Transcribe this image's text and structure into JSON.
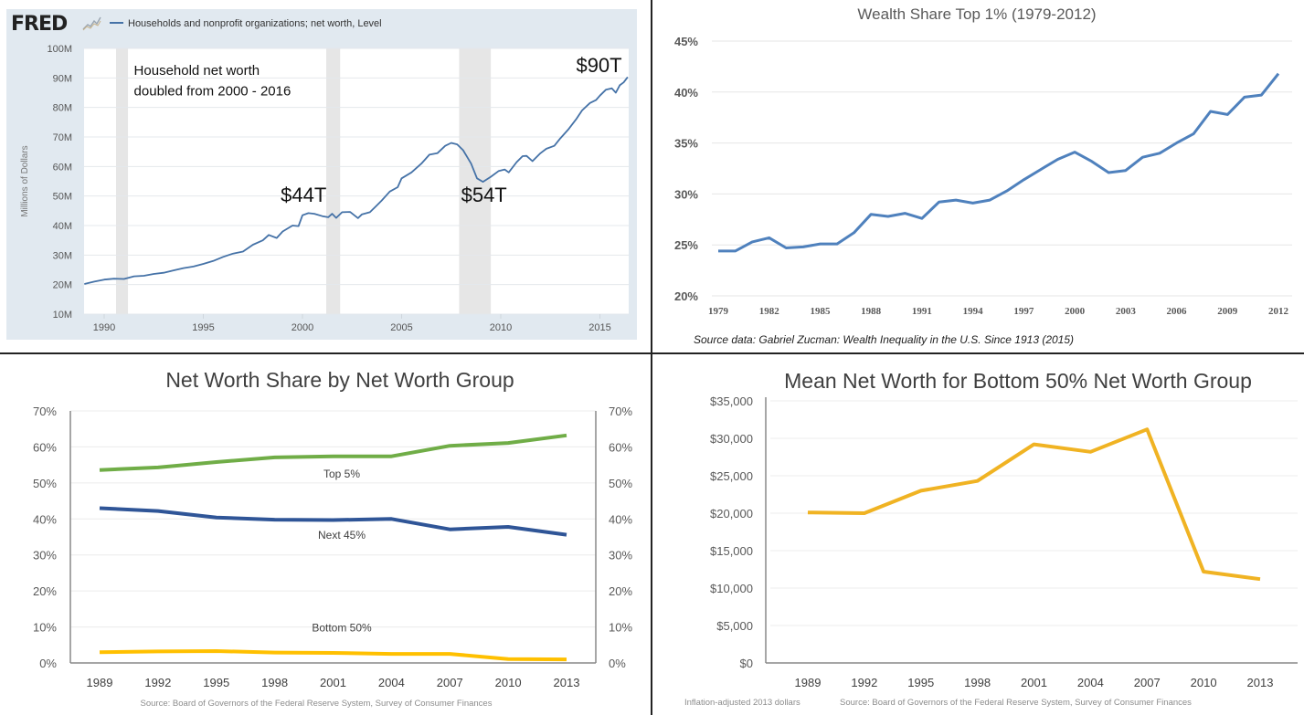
{
  "colors": {
    "fred_line": "#4572a7",
    "fred_panel_bg": "#e1e9f0",
    "recession_band": "#e6e6e6",
    "top1_line": "#4f81bd",
    "top5_line": "#70ad47",
    "next45_line": "#2f5597",
    "bottom50_line": "#ffc000",
    "mean_line": "#f0b323"
  },
  "chart_data": [
    {
      "id": "fred",
      "type": "line",
      "logo_text": "FRED",
      "logo_icon": "chart-line-icon",
      "legend": "Households and nonprofit organizations; net worth, Level",
      "ylabel": "Millions of Dollars",
      "ylim": [
        10,
        100
      ],
      "xlim": [
        1989.0,
        2016.4
      ],
      "y_ticks": [
        "10M",
        "20M",
        "30M",
        "40M",
        "50M",
        "60M",
        "70M",
        "80M",
        "90M",
        "100M"
      ],
      "y_tick_values": [
        10,
        20,
        30,
        40,
        50,
        60,
        70,
        80,
        90,
        100
      ],
      "x_ticks": [
        "1990",
        "1995",
        "2000",
        "2005",
        "2010",
        "2015"
      ],
      "x_tick_values": [
        1990,
        1995,
        2000,
        2005,
        2010,
        2015
      ],
      "recessions": [
        [
          1990.6,
          1991.2
        ],
        [
          2001.2,
          2001.9
        ],
        [
          2007.9,
          2009.5
        ]
      ],
      "annotations": [
        {
          "text": "Household net worth",
          "x": 1991.5,
          "y": 91
        },
        {
          "text": "doubled from 2000 - 2016",
          "x": 1991.5,
          "y": 84
        },
        {
          "text": "$44T",
          "x": 1998.9,
          "y": 48
        },
        {
          "text": "$54T",
          "x": 2008.0,
          "y": 48
        },
        {
          "text": "$90T",
          "x": 2013.8,
          "y": 92
        }
      ],
      "series": [
        {
          "name": "Households and nonprofit organizations; net worth, Level",
          "x": [
            1989.0,
            1989.5,
            1990.0,
            1990.5,
            1991.0,
            1991.5,
            1992.0,
            1992.5,
            1993.0,
            1993.5,
            1994.0,
            1994.5,
            1995.0,
            1995.5,
            1996.0,
            1996.5,
            1997.0,
            1997.5,
            1998.0,
            1998.3,
            1998.7,
            1999.0,
            1999.5,
            1999.8,
            2000.0,
            2000.3,
            2000.6,
            2001.0,
            2001.3,
            2001.5,
            2001.7,
            2002.0,
            2002.4,
            2002.8,
            2003.0,
            2003.4,
            2003.7,
            2004.0,
            2004.4,
            2004.8,
            2005.0,
            2005.5,
            2006.0,
            2006.4,
            2006.8,
            2007.2,
            2007.5,
            2007.8,
            2008.1,
            2008.5,
            2008.8,
            2009.1,
            2009.5,
            2009.9,
            2010.2,
            2010.4,
            2010.8,
            2011.1,
            2011.3,
            2011.6,
            2012.0,
            2012.3,
            2012.7,
            2013.0,
            2013.4,
            2013.8,
            2014.1,
            2014.5,
            2014.8,
            2015.0,
            2015.3,
            2015.6,
            2015.8,
            2016.0,
            2016.2,
            2016.4
          ],
          "values": [
            20.2,
            21.0,
            21.7,
            22.0,
            21.9,
            22.8,
            23.0,
            23.6,
            24.0,
            24.8,
            25.6,
            26.1,
            27.0,
            28.0,
            29.4,
            30.5,
            31.2,
            33.5,
            35.0,
            36.8,
            35.8,
            38.0,
            40.0,
            39.8,
            43.5,
            44.2,
            44.0,
            43.2,
            42.8,
            44.0,
            42.6,
            44.5,
            44.6,
            42.5,
            43.8,
            44.5,
            46.5,
            48.5,
            51.5,
            53.0,
            56.0,
            58.0,
            61.0,
            64.0,
            64.5,
            67.0,
            68.0,
            67.5,
            65.5,
            61.0,
            56.0,
            54.8,
            56.5,
            58.5,
            59.0,
            58.0,
            61.5,
            63.5,
            63.6,
            61.8,
            64.5,
            66.0,
            67.0,
            69.5,
            72.5,
            76.0,
            79.0,
            81.5,
            82.5,
            84.0,
            86.0,
            86.5,
            85.0,
            87.5,
            88.5,
            90.3
          ]
        }
      ]
    },
    {
      "id": "top1",
      "type": "line",
      "title": "Wealth Share Top 1% (1979-2012)",
      "ylim": [
        20,
        45
      ],
      "y_ticks": [
        "20%",
        "25%",
        "30%",
        "35%",
        "40%",
        "45%"
      ],
      "y_tick_values": [
        20,
        25,
        30,
        35,
        40,
        45
      ],
      "x_ticks": [
        "1979",
        "1982",
        "1985",
        "1988",
        "1991",
        "1994",
        "1997",
        "2000",
        "2003",
        "2006",
        "2009",
        "2012"
      ],
      "x_tick_values": [
        1979,
        1982,
        1985,
        1988,
        1991,
        1994,
        1997,
        2000,
        2003,
        2006,
        2009,
        2012
      ],
      "source": "Source data:  Gabriel Zucman:  Wealth Inequality in the U.S. Since 1913 (2015)",
      "series": [
        {
          "name": "Top 1% wealth share",
          "x": [
            1979,
            1980,
            1981,
            1982,
            1983,
            1984,
            1985,
            1986,
            1987,
            1988,
            1989,
            1990,
            1991,
            1992,
            1993,
            1994,
            1995,
            1996,
            1997,
            1998,
            1999,
            2000,
            2001,
            2002,
            2003,
            2004,
            2005,
            2006,
            2007,
            2008,
            2009,
            2010,
            2011,
            2012
          ],
          "values": [
            24.4,
            24.4,
            25.3,
            25.7,
            24.7,
            24.8,
            25.1,
            25.1,
            26.2,
            28.0,
            27.8,
            28.1,
            27.6,
            29.2,
            29.4,
            29.1,
            29.4,
            30.3,
            31.4,
            32.4,
            33.4,
            34.1,
            33.2,
            32.1,
            32.3,
            33.6,
            34.0,
            35.0,
            35.9,
            38.1,
            37.8,
            39.5,
            39.7,
            41.8
          ]
        }
      ]
    },
    {
      "id": "share",
      "type": "line",
      "title": "Net Worth Share by Net Worth Group",
      "ylim": [
        0,
        70
      ],
      "y_ticks": [
        "0%",
        "10%",
        "20%",
        "30%",
        "40%",
        "50%",
        "60%",
        "70%"
      ],
      "y_tick_values": [
        0,
        10,
        20,
        30,
        40,
        50,
        60,
        70
      ],
      "categories": [
        "1989",
        "1992",
        "1995",
        "1998",
        "2001",
        "2004",
        "2007",
        "2010",
        "2013"
      ],
      "source": "Source: Board of Governors of the Federal Reserve  System, Survey of Consumer Finances",
      "series": [
        {
          "name": "Top 5%",
          "label": "Top 5%",
          "values": [
            53.6,
            54.3,
            55.8,
            57.1,
            57.4,
            57.4,
            60.3,
            61.1,
            63.2
          ]
        },
        {
          "name": "Next 45%",
          "label": "Next 45%",
          "values": [
            43.0,
            42.2,
            40.4,
            39.8,
            39.7,
            40.0,
            37.1,
            37.8,
            35.6
          ]
        },
        {
          "name": "Bottom 50%",
          "label": "Bottom 50%",
          "values": [
            3.0,
            3.2,
            3.3,
            2.9,
            2.8,
            2.5,
            2.5,
            1.1,
            1.0
          ]
        }
      ]
    },
    {
      "id": "mean",
      "type": "line",
      "title": "Mean Net Worth for Bottom 50% Net Worth Group",
      "ylim": [
        0,
        35000
      ],
      "y_ticks": [
        "$0",
        "$5,000",
        "$10,000",
        "$15,000",
        "$20,000",
        "$25,000",
        "$30,000",
        "$35,000"
      ],
      "y_tick_values": [
        0,
        5000,
        10000,
        15000,
        20000,
        25000,
        30000,
        35000
      ],
      "categories": [
        "1989",
        "1992",
        "1995",
        "1998",
        "2001",
        "2004",
        "2007",
        "2010",
        "2013"
      ],
      "note": "Inflation-adjusted  2013 dollars",
      "source": "Source: Board of Governors  of the Federal Reserve  System, Survey of Consumer  Finances",
      "series": [
        {
          "name": "Mean net worth, bottom 50%",
          "values": [
            20100,
            20000,
            23000,
            24300,
            29200,
            28200,
            31200,
            12200,
            11200
          ]
        }
      ]
    }
  ]
}
